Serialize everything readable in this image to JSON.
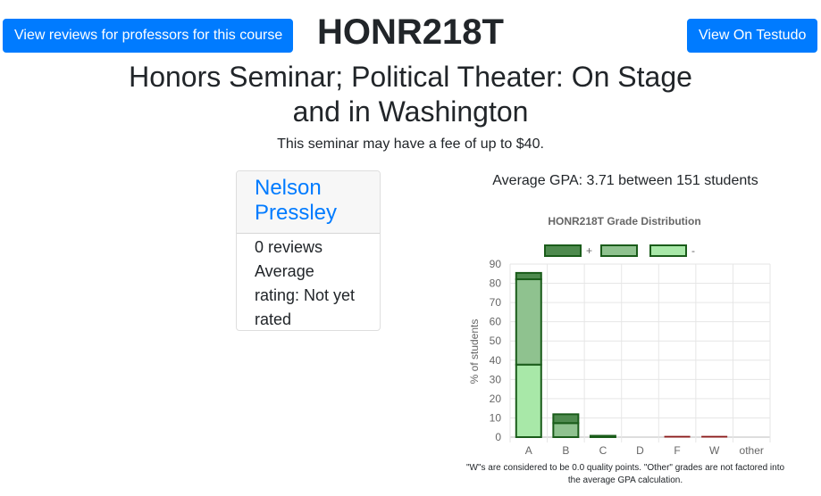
{
  "header": {
    "prof_button_label": "View reviews for professors for this course",
    "course_code": "HONR218T",
    "testudo_button_label": "View On Testudo"
  },
  "course": {
    "title": "Honors Seminar; Political Theater: On Stage and in Washington",
    "fee_note": "This seminar may have a fee of up to $40."
  },
  "professor_card": {
    "name": "Nelson Pressley",
    "reviews": "0 reviews",
    "rating": "Average rating: Not yet rated"
  },
  "summary": {
    "avg_gpa_text": "Average GPA: 3.71 between 151 students"
  },
  "chart_data": {
    "type": "bar",
    "title": "HONR218T Grade Distribution",
    "ylabel": "% of students",
    "xlabel": "",
    "ylim": [
      0,
      90
    ],
    "yticks": [
      0,
      10,
      20,
      30,
      40,
      50,
      60,
      70,
      80,
      90
    ],
    "grid": true,
    "stacked": true,
    "legend_position": "top",
    "categories": [
      "A",
      "B",
      "C",
      "D",
      "F",
      "W",
      "other"
    ],
    "series": [
      {
        "name": "-",
        "color": "#a8e8a8",
        "values": [
          37.7,
          0,
          0,
          0,
          0,
          0,
          0
        ]
      },
      {
        "name": "",
        "color": "#8fc28f",
        "values": [
          44.4,
          7.3,
          0.7,
          0,
          0,
          0,
          0
        ]
      },
      {
        "name": "+",
        "color": "#4e8a4e",
        "values": [
          3.3,
          4.6,
          0,
          0,
          0,
          0,
          0
        ]
      }
    ],
    "special_colors": {
      "F": "#c98a8a",
      "W": "#c98a8a"
    },
    "special_values": {
      "F": 0.4,
      "W": 0.4
    }
  },
  "note": "\"W\"s are considered to be 0.0 quality points. \"Other\" grades are not factored into the average GPA calculation."
}
